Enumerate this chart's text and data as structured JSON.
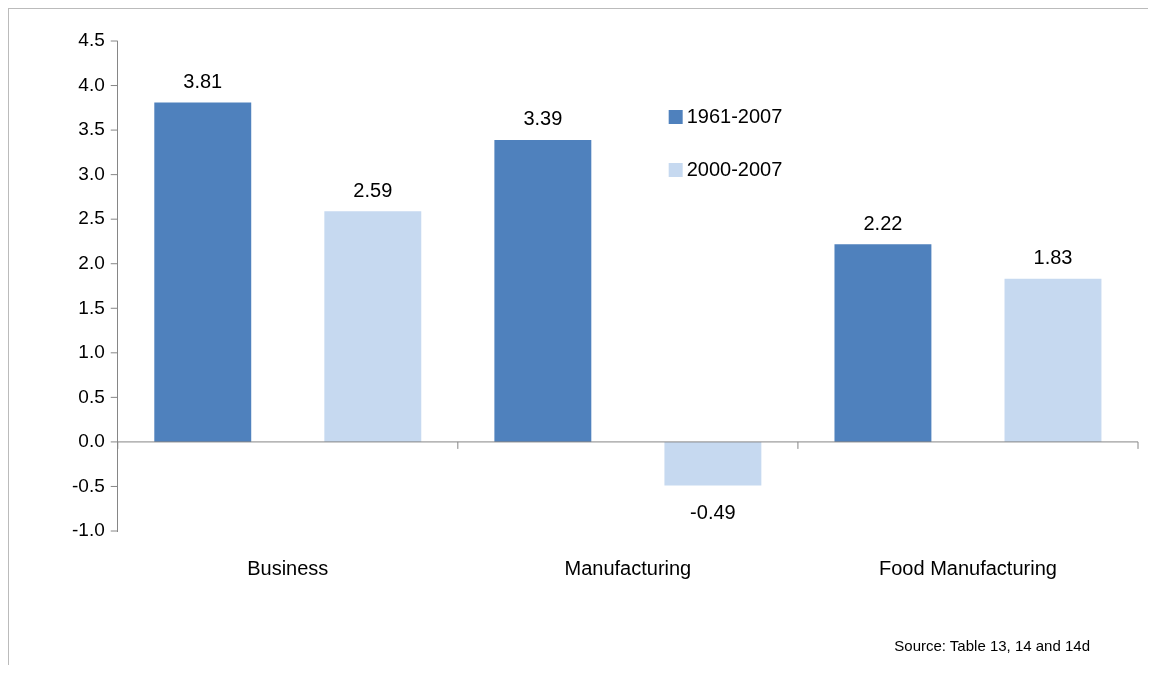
{
  "chart_data": {
    "type": "bar",
    "categories": [
      "Business",
      "Manufacturing",
      "Food Manufacturing"
    ],
    "series": [
      {
        "name": "1961-2007",
        "color": "#4f81bd",
        "values": [
          3.81,
          3.39,
          2.22
        ]
      },
      {
        "name": "2000-2007",
        "color": "#c6d9f0",
        "values": [
          2.59,
          -0.49,
          1.83
        ]
      }
    ],
    "ylim": [
      -1.0,
      4.5
    ],
    "yticks": [
      {
        "value": -1,
        "label": "-1.0"
      },
      {
        "value": -0.5,
        "label": "-0.5"
      },
      {
        "value": 0,
        "label": "0.0"
      },
      {
        "value": 0.5,
        "label": "0.5"
      },
      {
        "value": 1,
        "label": "1.0"
      },
      {
        "value": 1.5,
        "label": "1.5"
      },
      {
        "value": 2,
        "label": "2.0"
      },
      {
        "value": 2.5,
        "label": "2.5"
      },
      {
        "value": 3,
        "label": "3.0"
      },
      {
        "value": 3.5,
        "label": "3.5"
      },
      {
        "value": 4,
        "label": "4.0"
      },
      {
        "value": 4.5,
        "label": "4.5"
      }
    ],
    "legend": "top",
    "data_labels": true,
    "annotations": [
      "Source: Table 13, 14 and 14d"
    ]
  }
}
